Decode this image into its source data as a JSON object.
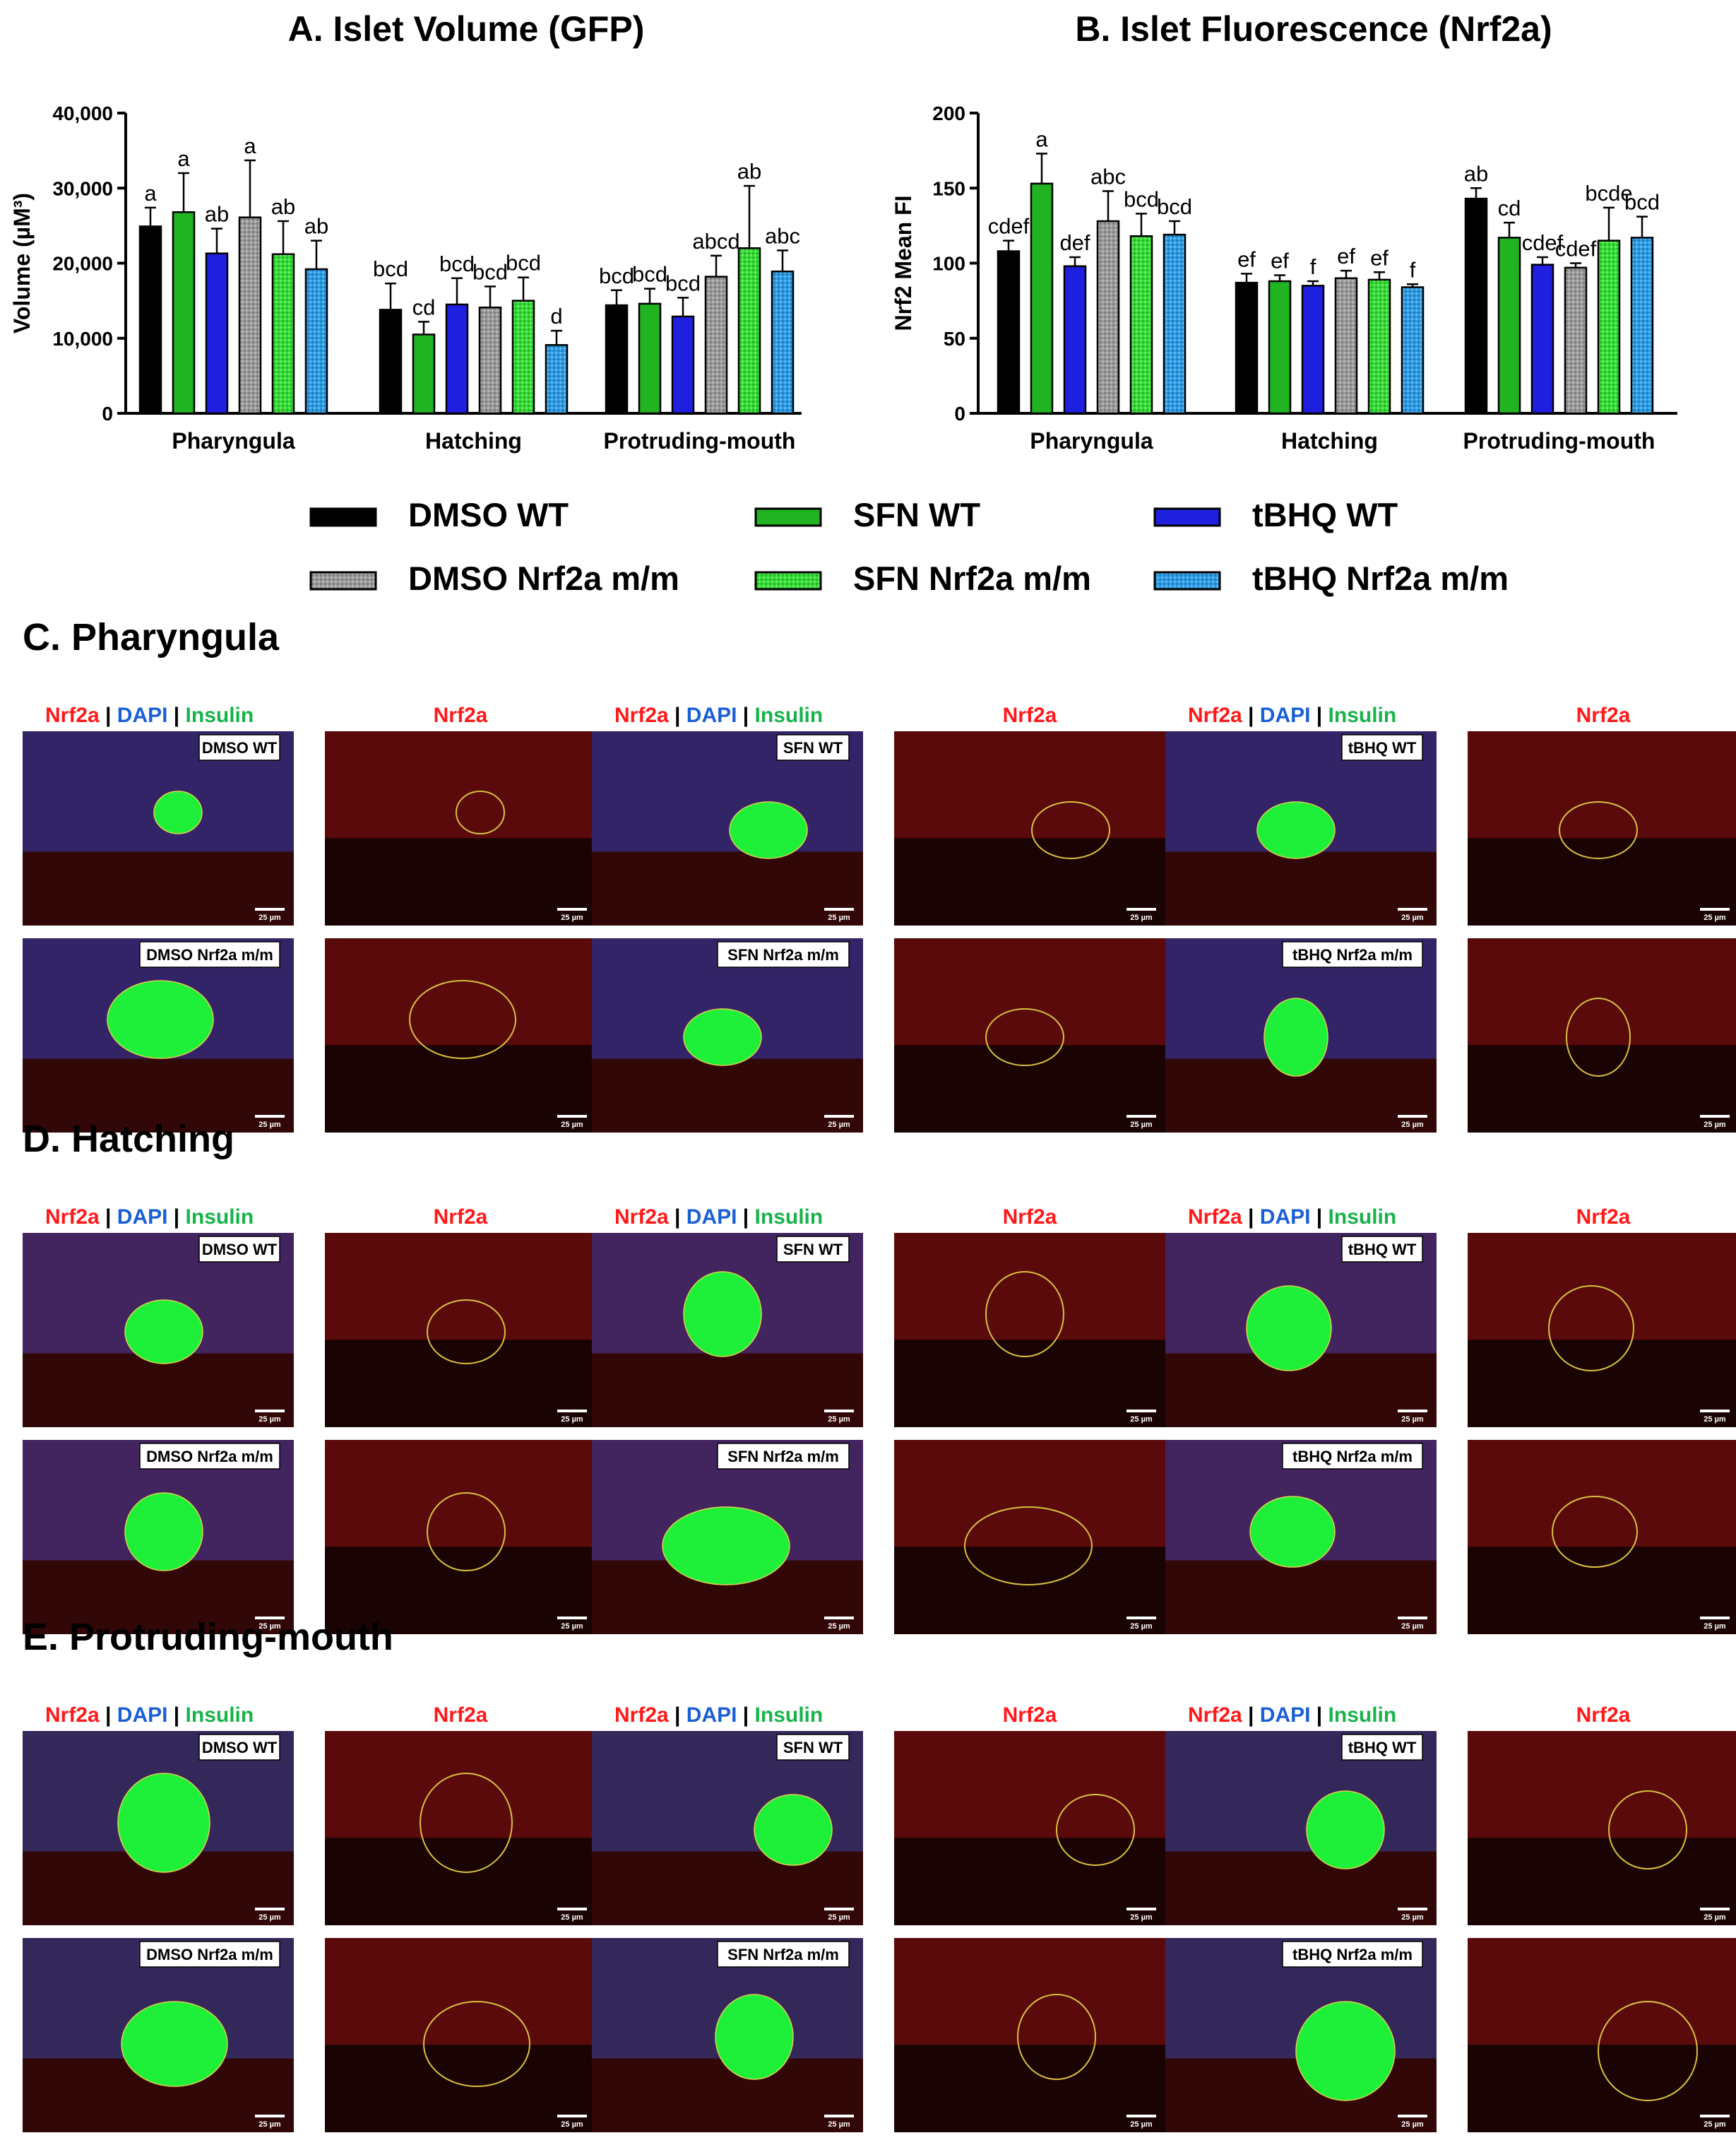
{
  "chart_data": [
    {
      "type": "bar",
      "title": "A. Islet Volume (GFP)",
      "ylabel": "Volume (µM³)",
      "xlabel": "",
      "ylim": [
        0,
        40000
      ],
      "yticks": [
        "0",
        "10,000",
        "20,000",
        "30,000",
        "40,000"
      ],
      "grid": false,
      "categories": [
        "Pharyngula",
        "Hatching",
        "Protruding-mouth"
      ],
      "series": [
        {
          "name": "DMSO WT",
          "color": "#000000",
          "pattern": "solid",
          "values": [
            24900,
            13800,
            14400
          ],
          "errors": [
            2500,
            3500,
            2000
          ],
          "letters": [
            "a",
            "bcd",
            "bcd"
          ]
        },
        {
          "name": "SFN WT",
          "color": "#22b322",
          "pattern": "solid",
          "values": [
            26800,
            10500,
            14600
          ],
          "errors": [
            5200,
            1700,
            2000
          ],
          "letters": [
            "a",
            "cd",
            "bcd"
          ]
        },
        {
          "name": "tBHQ WT",
          "color": "#1f1fe0",
          "pattern": "solid",
          "values": [
            21300,
            14500,
            12900
          ],
          "errors": [
            3300,
            3500,
            2500
          ],
          "letters": [
            "ab",
            "bcd",
            "bcd"
          ]
        },
        {
          "name": "DMSO Nrf2a m/m",
          "color": "#9a9a9a",
          "pattern": "dots",
          "values": [
            26100,
            14100,
            18200
          ],
          "errors": [
            7600,
            2800,
            2800
          ],
          "letters": [
            "a",
            "bcd",
            "abcd"
          ]
        },
        {
          "name": "SFN Nrf2a m/m",
          "color": "#33dd33",
          "pattern": "dots",
          "values": [
            21200,
            15000,
            22000
          ],
          "errors": [
            4400,
            3100,
            8300
          ],
          "letters": [
            "ab",
            "bcd",
            "ab"
          ]
        },
        {
          "name": "tBHQ Nrf2a m/m",
          "color": "#2a9be6",
          "pattern": "dots",
          "values": [
            19200,
            9100,
            18900
          ],
          "errors": [
            3800,
            1900,
            2800
          ],
          "letters": [
            "ab",
            "d",
            "abc"
          ]
        }
      ]
    },
    {
      "type": "bar",
      "title": "B. Islet Fluorescence (Nrf2a)",
      "ylabel": "Nrf2 Mean FI",
      "xlabel": "",
      "ylim": [
        0,
        200
      ],
      "yticks": [
        "0",
        "50",
        "100",
        "150",
        "200"
      ],
      "grid": false,
      "categories": [
        "Pharyngula",
        "Hatching",
        "Protruding-mouth"
      ],
      "series": [
        {
          "name": "DMSO WT",
          "color": "#000000",
          "pattern": "solid",
          "values": [
            108,
            87,
            143
          ],
          "errors": [
            7,
            6,
            7
          ],
          "letters": [
            "cdef",
            "ef",
            "ab"
          ]
        },
        {
          "name": "SFN WT",
          "color": "#22b322",
          "pattern": "solid",
          "values": [
            153,
            88,
            117
          ],
          "errors": [
            20,
            4,
            10
          ],
          "letters": [
            "a",
            "ef",
            "cd"
          ]
        },
        {
          "name": "tBHQ WT",
          "color": "#1f1fe0",
          "pattern": "solid",
          "values": [
            98,
            85,
            99
          ],
          "errors": [
            6,
            3,
            5
          ],
          "letters": [
            "def",
            "f",
            "cdef"
          ]
        },
        {
          "name": "DMSO Nrf2a m/m",
          "color": "#9a9a9a",
          "pattern": "dots",
          "values": [
            128,
            90,
            97
          ],
          "errors": [
            20,
            5,
            3
          ],
          "letters": [
            "abc",
            "ef",
            "cdef"
          ]
        },
        {
          "name": "SFN Nrf2a m/m",
          "color": "#33dd33",
          "pattern": "dots",
          "values": [
            118,
            89,
            115
          ],
          "errors": [
            15,
            5,
            22
          ],
          "letters": [
            "bcd",
            "ef",
            "bcde"
          ]
        },
        {
          "name": "tBHQ Nrf2a m/m",
          "color": "#2a9be6",
          "pattern": "dots",
          "values": [
            119,
            84,
            117
          ],
          "errors": [
            9,
            2,
            14
          ],
          "letters": [
            "bcd",
            "f",
            "bcd"
          ]
        }
      ]
    }
  ],
  "legend": {
    "placement": "below charts",
    "items": [
      "DMSO WT",
      "SFN WT",
      "tBHQ WT",
      "DMSO Nrf2a m/m",
      "SFN Nrf2a m/m",
      "tBHQ Nrf2a m/m"
    ]
  },
  "micrographs": {
    "channel_labels": {
      "nrf2a": "Nrf2a",
      "sep": "|",
      "dapi": "DAPI",
      "insulin": "Insulin",
      "colors": {
        "nrf2a": "#ff1a1a",
        "dapi": "#1a5fd6",
        "insulin": "#18b34a"
      }
    },
    "scale_bar": "25 µm",
    "sections": [
      {
        "title": "C. Pharyngula",
        "conditions": [
          "DMSO WT",
          "SFN WT",
          "tBHQ WT",
          "DMSO Nrf2a m/m",
          "SFN Nrf2a m/m",
          "tBHQ Nrf2a m/m"
        ]
      },
      {
        "title": "D. Hatching",
        "conditions": [
          "DMSO WT",
          "SFN WT",
          "tBHQ WT",
          "DMSO Nrf2a m/m",
          "SFN Nrf2a m/m",
          "tBHQ Nrf2a m/m"
        ]
      },
      {
        "title": "E. Protruding-mouth",
        "conditions": [
          "DMSO WT",
          "SFN WT",
          "tBHQ WT",
          "DMSO Nrf2a m/m",
          "SFN Nrf2a m/m",
          "tBHQ Nrf2a m/m"
        ]
      }
    ]
  }
}
